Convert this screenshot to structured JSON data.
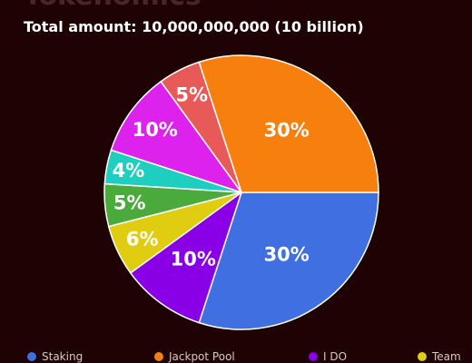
{
  "header": {
    "top_title": "Tokenomics",
    "subtitle": "Total amount: 10,000,000,000 (10 billion)"
  },
  "chart_data": {
    "type": "pie",
    "slices": [
      {
        "label": "Staking",
        "value": 30,
        "display": "30%",
        "color": "#3f6fe0"
      },
      {
        "label": "I DO",
        "value": 10,
        "display": "10%",
        "color": "#8a00e6"
      },
      {
        "label": "Team",
        "value": 6,
        "display": "6%",
        "color": "#e0cc10"
      },
      {
        "label": "",
        "value": 5,
        "display": "5%",
        "color": "#4aab3c"
      },
      {
        "label": "",
        "value": 4,
        "display": "4%",
        "color": "#1ecfc0"
      },
      {
        "label": "",
        "value": 10,
        "display": "10%",
        "color": "#dd22ee"
      },
      {
        "label": "",
        "value": 5,
        "display": "5%",
        "color": "#e85a58"
      },
      {
        "label": "Jackpot Pool",
        "value": 30,
        "display": "30%",
        "color": "#f77f0e"
      }
    ],
    "legend": [
      {
        "label": "Staking",
        "color": "#3f6fe0"
      },
      {
        "label": "Jackpot Pool",
        "color": "#f77f0e"
      },
      {
        "label": "I DO",
        "color": "#8a00e6"
      },
      {
        "label": "Team",
        "color": "#e0cc10"
      }
    ],
    "legend_position": "bottom"
  }
}
